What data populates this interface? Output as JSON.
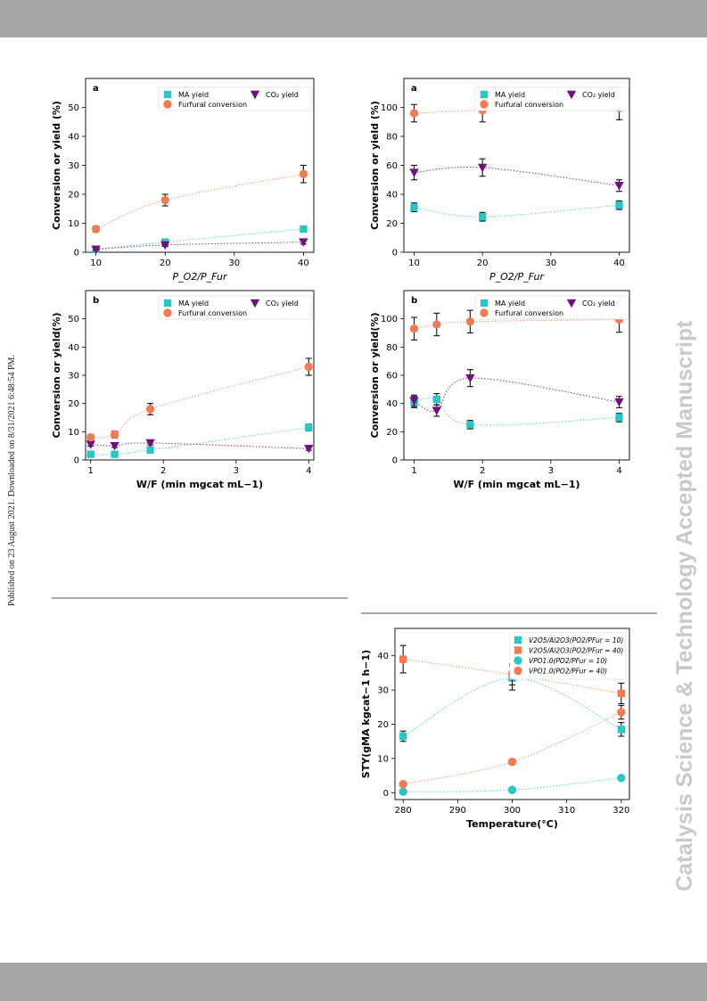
{
  "page": {
    "journal_watermark": "Catalysis Science & Technology Accepted Manuscript",
    "published_note": "Published on 23 August 2021. Downloaded on 8/31/2021 6:48:54 PM."
  },
  "colors": {
    "ma": "#2ec4c4",
    "fur": "#ee7c55",
    "co2": "#6e0f7a"
  },
  "chart_data": [
    {
      "type": "scatter",
      "panel_label": "a",
      "xlabel": "P_O2/P_Fur",
      "ylabel": "Conversion or yield (%)",
      "xlim": [
        8.5,
        41.5
      ],
      "ylim": [
        0,
        60
      ],
      "xticks": [
        10,
        20,
        30,
        40
      ],
      "yticks": [
        0,
        10,
        20,
        30,
        40,
        50
      ],
      "legend": "top-right",
      "series": [
        {
          "name": "MA yield",
          "marker": "square",
          "color": "#2ec4c4",
          "x": [
            10,
            20,
            40
          ],
          "y": [
            1,
            3.5,
            8
          ],
          "err": [
            0.3,
            0.6,
            1
          ]
        },
        {
          "name": "CO₂ yield",
          "marker": "triangle-down",
          "color": "#6e0f7a",
          "x": [
            10,
            20,
            40
          ],
          "y": [
            1,
            2.5,
            3.5
          ],
          "err": [
            0.3,
            0.5,
            0.7
          ]
        },
        {
          "name": "Furfural conversion",
          "marker": "circle",
          "color": "#ee7c55",
          "x": [
            10,
            20,
            40
          ],
          "y": [
            8,
            18,
            27
          ],
          "err": [
            1,
            2,
            3
          ]
        }
      ]
    },
    {
      "type": "scatter",
      "panel_label": "a",
      "xlabel": "P_O2/P_Fur",
      "ylabel": "Conversion or yield (%)",
      "xlim": [
        8.5,
        41.5
      ],
      "ylim": [
        0,
        120
      ],
      "xticks": [
        10,
        20,
        30,
        40
      ],
      "yticks": [
        0,
        20,
        40,
        60,
        80,
        100
      ],
      "legend": "top-right",
      "series": [
        {
          "name": "MA yield",
          "marker": "square",
          "color": "#2ec4c4",
          "x": [
            10,
            20,
            40
          ],
          "y": [
            31,
            24.5,
            32.5
          ],
          "err": [
            3,
            3,
            3
          ]
        },
        {
          "name": "CO₂ yield",
          "marker": "triangle-down",
          "color": "#6e0f7a",
          "x": [
            10,
            20,
            40
          ],
          "y": [
            55,
            58.5,
            46
          ],
          "err": [
            5,
            6,
            4
          ]
        },
        {
          "name": "Furfural conversion",
          "marker": "circle",
          "color": "#ee7c55",
          "x": [
            10,
            20,
            40
          ],
          "y": [
            96,
            98,
            99.5
          ],
          "err": [
            6,
            8,
            8
          ]
        }
      ]
    },
    {
      "type": "scatter",
      "panel_label": "b",
      "xlabel": "W/F (min mgcat mL−1)",
      "ylabel": "Conversion or yield(%)",
      "xlim": [
        0.93,
        4.07
      ],
      "ylim": [
        0,
        60
      ],
      "xticks": [
        1,
        2,
        3,
        4
      ],
      "yticks": [
        0,
        10,
        20,
        30,
        40,
        50
      ],
      "legend": "top-right",
      "series": [
        {
          "name": "MA yield",
          "marker": "square",
          "color": "#2ec4c4",
          "x": [
            1,
            1.33,
            1.82,
            4
          ],
          "y": [
            2,
            2,
            3.5,
            11.5
          ],
          "err": [
            0.5,
            0.5,
            0.6,
            1.2
          ]
        },
        {
          "name": "CO₂ yield",
          "marker": "triangle-down",
          "color": "#6e0f7a",
          "x": [
            1,
            1.33,
            1.82,
            4
          ],
          "y": [
            5.5,
            5,
            6,
            4
          ],
          "err": [
            0.6,
            0.6,
            0.7,
            0.6
          ]
        },
        {
          "name": "Furfural conversion",
          "marker": "circle",
          "color": "#ee7c55",
          "x": [
            1,
            1.33,
            1.82,
            4
          ],
          "y": [
            8,
            9,
            18,
            33
          ],
          "err": [
            1,
            1.2,
            2,
            3
          ]
        }
      ]
    },
    {
      "type": "scatter",
      "panel_label": "b",
      "xlabel": "W/F (min mgcat mL−1)",
      "ylabel": "Conversion or yield(%)",
      "xlim": [
        0.85,
        4.15
      ],
      "ylim": [
        0,
        120
      ],
      "xticks": [
        1,
        2,
        3,
        4
      ],
      "yticks": [
        0,
        20,
        40,
        60,
        80,
        100
      ],
      "legend": "top-right",
      "series": [
        {
          "name": "MA yield",
          "marker": "square",
          "color": "#2ec4c4",
          "x": [
            1,
            1.33,
            1.82,
            4
          ],
          "y": [
            41,
            43,
            25,
            30
          ],
          "err": [
            4,
            4,
            3,
            3
          ]
        },
        {
          "name": "CO₂ yield",
          "marker": "triangle-down",
          "color": "#6e0f7a",
          "x": [
            1,
            1.33,
            1.82,
            4
          ],
          "y": [
            42,
            35,
            58,
            41
          ],
          "err": [
            4,
            4,
            6,
            4
          ]
        },
        {
          "name": "Furfural conversion",
          "marker": "circle",
          "color": "#ee7c55",
          "x": [
            1,
            1.33,
            1.82,
            4
          ],
          "y": [
            93,
            96,
            98,
            99.5
          ],
          "err": [
            8,
            8,
            8,
            9
          ]
        }
      ]
    },
    {
      "type": "scatter",
      "panel_label": "",
      "xlabel": "Temperature(°C)",
      "ylabel": "STY(gMA kgcat−1 h−1)",
      "xlim": [
        278.5,
        321.5
      ],
      "ylim": [
        -2,
        48
      ],
      "xticks": [
        280,
        290,
        300,
        310,
        320
      ],
      "yticks": [
        0,
        10,
        20,
        30,
        40
      ],
      "legend": "top-right",
      "series": [
        {
          "name": "V2O5/Al2O3(PO2/PFur = 10)",
          "marker": "square",
          "color": "#2ec4c4",
          "x": [
            280,
            300,
            320
          ],
          "y": [
            16.5,
            33.5,
            18.5
          ],
          "err": [
            1.5,
            3.5,
            2
          ]
        },
        {
          "name": "V2O5/Al2O3(PO2/PFur = 40)",
          "marker": "square",
          "color": "#ee7c55",
          "x": [
            280,
            300,
            320
          ],
          "y": [
            39,
            34.5,
            29
          ],
          "err": [
            4,
            3,
            3
          ]
        },
        {
          "name": "VPO1.0(PO2/PFur = 10)",
          "marker": "circle",
          "color": "#2ec4c4",
          "x": [
            280,
            300,
            320
          ],
          "y": [
            0.3,
            0.8,
            4.3
          ],
          "err": [
            0.3,
            0.4,
            0.5
          ]
        },
        {
          "name": "VPO1.0(PO2/PFur = 40)",
          "marker": "circle",
          "color": "#ee7c55",
          "x": [
            280,
            300,
            320
          ],
          "y": [
            2.5,
            9,
            23.5
          ],
          "err": [
            0.5,
            0.8,
            2
          ]
        }
      ]
    }
  ]
}
